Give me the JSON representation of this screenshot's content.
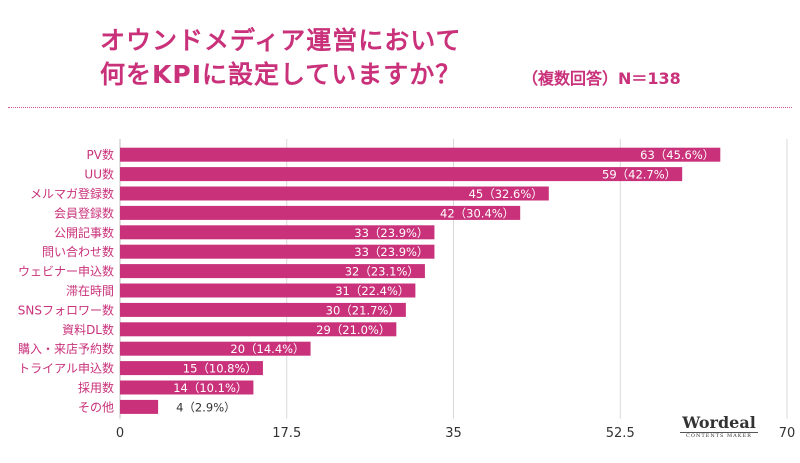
{
  "header": {
    "title_line1": "オウンドメディア運営において",
    "title_line2": "何をKPIに設定していますか？",
    "sample_note": "（複数回答）N＝138"
  },
  "logo": {
    "name": "Wordeal",
    "tagline": "CONTENTS MAKER"
  },
  "colors": {
    "accent": "#c9317a",
    "bar": "#c9317a",
    "grid": "#d9d9d9"
  },
  "chart_data": {
    "type": "bar",
    "orientation": "horizontal",
    "categories": [
      "PV数",
      "UU数",
      "メルマガ登録数",
      "会員登録数",
      "公開記事数",
      "問い合わせ数",
      "ウェビナー申込数",
      "滞在時間",
      "SNSフォロワー数",
      "資料DL数",
      "購入・来店予約数",
      "トライアル申込数",
      "採用数",
      "その他"
    ],
    "values": [
      63,
      59,
      45,
      42,
      33,
      33,
      32,
      31,
      30,
      29,
      20,
      15,
      14,
      4
    ],
    "data_labels": [
      "63（45.6%）",
      "59（42.7%）",
      "45（32.6%）",
      "42（30.4%）",
      "33（23.9%）",
      "33（23.9%）",
      "32（23.1%）",
      "31（22.4%）",
      "30（21.7%）",
      "29（21.0%）",
      "20（14.4%）",
      "15（10.8%）",
      "14（10.1%）",
      "4（2.9%）"
    ],
    "xlim": [
      0,
      70
    ],
    "xticks": [
      0,
      17.5,
      35,
      52.5,
      70
    ],
    "xtick_labels": [
      "0",
      "17.5",
      "35",
      "52.5",
      "70"
    ],
    "grid": true
  }
}
